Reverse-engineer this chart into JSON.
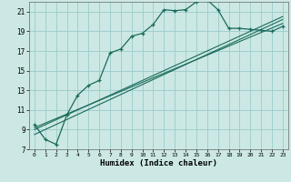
{
  "title": "",
  "xlabel": "Humidex (Indice chaleur)",
  "bg_color": "#cce8e4",
  "grid_color": "#99cccc",
  "line_color": "#1a6b5a",
  "ylim": [
    7,
    22
  ],
  "xlim": [
    -0.5,
    23.5
  ],
  "yticks": [
    7,
    9,
    11,
    13,
    15,
    17,
    19,
    21
  ],
  "xticks": [
    0,
    1,
    2,
    3,
    4,
    5,
    6,
    7,
    8,
    9,
    10,
    11,
    12,
    13,
    14,
    15,
    16,
    17,
    18,
    19,
    20,
    21,
    22,
    23
  ],
  "main_line_x": [
    0,
    1,
    2,
    3,
    4,
    5,
    6,
    7,
    8,
    9,
    10,
    11,
    12,
    13,
    14,
    15,
    16,
    17,
    18,
    19,
    20,
    21,
    22,
    23
  ],
  "main_line_y": [
    9.5,
    8.0,
    7.5,
    10.5,
    12.5,
    13.5,
    14.0,
    16.8,
    17.2,
    18.5,
    18.8,
    19.7,
    21.2,
    21.1,
    21.2,
    22.0,
    22.2,
    21.2,
    19.3,
    19.3,
    19.2,
    19.1,
    19.0,
    19.5
  ],
  "diag_line1_x": [
    0,
    23
  ],
  "diag_line1_y": [
    9.2,
    19.8
  ],
  "diag_line2_x": [
    0,
    23
  ],
  "diag_line2_y": [
    8.5,
    20.2
  ],
  "diag_line3_x": [
    0,
    23
  ],
  "diag_line3_y": [
    9.0,
    20.5
  ]
}
